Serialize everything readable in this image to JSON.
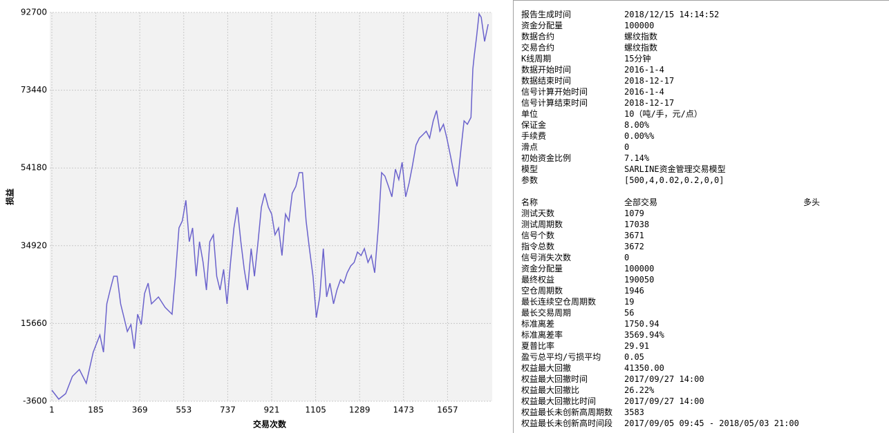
{
  "chart_data": {
    "type": "line",
    "ylabel": "损益",
    "xlabel": "交易次数",
    "xlim": [
      1,
      1841
    ],
    "xticks": [
      1,
      185,
      369,
      553,
      737,
      921,
      1105,
      1289,
      1473,
      1657
    ],
    "ylim": [
      -3600,
      92700
    ],
    "yticks": [
      -3600,
      15660,
      34920,
      54180,
      73440,
      92700
    ],
    "grid": true,
    "series": [
      {
        "color": "#6a62cc",
        "x": [
          1,
          30,
          59,
          87,
          116,
          145,
          174,
          202,
          217,
          231,
          245,
          260,
          274,
          289,
          303,
          317,
          332,
          346,
          360,
          375,
          389,
          404,
          418,
          447,
          475,
          504,
          518,
          533,
          547,
          562,
          576,
          590,
          605,
          619,
          634,
          648,
          662,
          677,
          691,
          705,
          720,
          734,
          749,
          763,
          777,
          792,
          806,
          820,
          835,
          849,
          864,
          878,
          892,
          907,
          921,
          935,
          950,
          964,
          979,
          993,
          1007,
          1022,
          1036,
          1050,
          1065,
          1079,
          1094,
          1108,
          1122,
          1137,
          1151,
          1165,
          1180,
          1194,
          1209,
          1223,
          1237,
          1252,
          1266,
          1280,
          1295,
          1309,
          1324,
          1338,
          1352,
          1367,
          1381,
          1395,
          1410,
          1424,
          1439,
          1453,
          1467,
          1482,
          1496,
          1510,
          1525,
          1539,
          1554,
          1568,
          1582,
          1597,
          1611,
          1625,
          1640,
          1654,
          1669,
          1683,
          1697,
          1712,
          1726,
          1740,
          1755,
          1763,
          1769,
          1778,
          1789,
          1798,
          1812,
          1827
        ],
        "values": [
          -860,
          -3090,
          -1720,
          2560,
          4270,
          850,
          8540,
          12820,
          8540,
          20520,
          23940,
          27360,
          27360,
          20520,
          17100,
          13680,
          15390,
          9400,
          17950,
          15390,
          23080,
          25650,
          20520,
          22230,
          19660,
          17950,
          27360,
          39330,
          41040,
          46180,
          35910,
          39330,
          27360,
          35910,
          30780,
          23940,
          35910,
          37620,
          27360,
          23940,
          29070,
          20520,
          30780,
          39330,
          44470,
          35910,
          29070,
          23940,
          34200,
          27360,
          35910,
          44470,
          47890,
          44470,
          42760,
          37620,
          39330,
          32490,
          42760,
          41040,
          47890,
          49600,
          53020,
          53020,
          41040,
          34200,
          27360,
          17100,
          22230,
          34200,
          22230,
          25650,
          20520,
          23940,
          26510,
          25650,
          28220,
          29930,
          30780,
          33350,
          32490,
          34200,
          30780,
          32490,
          28220,
          39330,
          53020,
          52160,
          49600,
          47030,
          53870,
          51310,
          55580,
          47030,
          50450,
          54730,
          59860,
          61570,
          62430,
          63280,
          61570,
          65850,
          68410,
          63280,
          64990,
          61570,
          57290,
          53020,
          49600,
          58150,
          65850,
          64990,
          66700,
          78680,
          82100,
          86370,
          92360,
          91500,
          85520,
          89790
        ]
      }
    ]
  },
  "report": {
    "rows": [
      [
        "报告生成时间",
        "2018/12/15 14:14:52"
      ],
      [
        "资金分配量",
        "100000"
      ],
      [
        "数据合约",
        "螺纹指数"
      ],
      [
        "交易合约",
        "螺纹指数"
      ],
      [
        "K线周期",
        "15分钟"
      ],
      [
        "数据开始时间",
        "2016-1-4"
      ],
      [
        "数据结束时间",
        "2018-12-17"
      ],
      [
        "信号计算开始时间",
        "2016-1-4"
      ],
      [
        "信号计算结束时间",
        "2018-12-17"
      ],
      [
        "单位",
        "10（吨/手，元/点）"
      ],
      [
        "保证金",
        "8.00%"
      ],
      [
        "手续费",
        "0.00%%"
      ],
      [
        "滑点",
        "0"
      ],
      [
        "初始资金比例",
        "7.14%"
      ],
      [
        "模型",
        "SARLINE资金管理交易模型"
      ],
      [
        "参数",
        "[500,4,0.02,0.2,0,0]"
      ]
    ]
  },
  "stats": {
    "header": [
      "名称",
      "全部交易",
      "多头"
    ],
    "rows": [
      [
        "测试天数",
        "1079"
      ],
      [
        "测试周期数",
        "17038"
      ],
      [
        "信号个数",
        "3671"
      ],
      [
        "指令总数",
        "3672"
      ],
      [
        "信号消失次数",
        "0"
      ],
      [
        "资金分配量",
        "100000"
      ],
      [
        "最终权益",
        "190050"
      ],
      [
        "空仓周期数",
        "1946"
      ],
      [
        "最长连续空仓周期数",
        "19"
      ],
      [
        "最长交易周期",
        "56"
      ],
      [
        "标准离差",
        "1750.94"
      ],
      [
        "标准离差率",
        "3569.94%"
      ],
      [
        "夏普比率",
        "29.91"
      ],
      [
        "盈亏总平均/亏损平均",
        "0.05"
      ],
      [
        "权益最大回撤",
        "41350.00"
      ],
      [
        "权益最大回撤时间",
        "2017/09/27 14:00"
      ],
      [
        "权益最大回撤比",
        "26.22%"
      ],
      [
        "权益最大回撤比时间",
        "2017/09/27 14:00"
      ],
      [
        "权益最长未创新高周期数",
        "3583"
      ],
      [
        "权益最长未创新高时间段",
        "2017/09/05 09:45 - 2018/05/03 21:00"
      ]
    ]
  }
}
